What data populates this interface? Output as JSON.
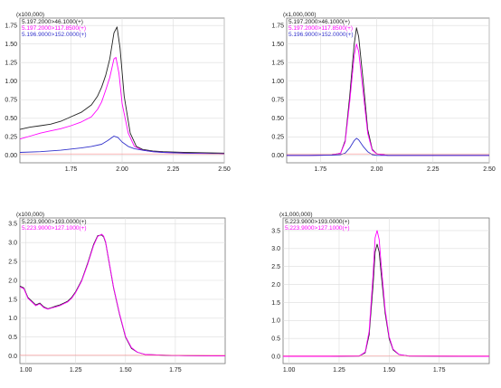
{
  "chart_data": [
    {
      "type": "line",
      "scale_label": "(x100,000)",
      "legend": [
        "5.197.2000>46.1000(+)",
        "5.197.2000>117.8500(+)",
        "5.196.9000>152.0000(+)"
      ],
      "xlim": [
        1.5,
        2.5
      ],
      "ylim": [
        -0.1,
        1.85
      ],
      "xticks": [
        "1.75",
        "2.00",
        "2.25",
        "2.50"
      ],
      "yticks": [
        "0.00",
        "0.25",
        "0.50",
        "0.75",
        "1.00",
        "1.25",
        "1.50",
        "1.75"
      ],
      "series": [
        {
          "name": "5.197.2000>46.1000(+)",
          "color": "#222222",
          "x": [
            1.5,
            1.55,
            1.6,
            1.65,
            1.7,
            1.75,
            1.8,
            1.85,
            1.88,
            1.9,
            1.92,
            1.94,
            1.96,
            1.975,
            1.99,
            2.01,
            2.04,
            2.07,
            2.1,
            2.15,
            2.2,
            2.3,
            2.5
          ],
          "y": [
            0.35,
            0.38,
            0.4,
            0.42,
            0.46,
            0.52,
            0.58,
            0.68,
            0.8,
            0.92,
            1.08,
            1.3,
            1.65,
            1.73,
            1.45,
            0.8,
            0.3,
            0.12,
            0.08,
            0.06,
            0.05,
            0.04,
            0.03
          ]
        },
        {
          "name": "5.197.2000>117.8500(+)",
          "color": "#ff00ff",
          "x": [
            1.5,
            1.55,
            1.6,
            1.65,
            1.7,
            1.75,
            1.8,
            1.85,
            1.88,
            1.9,
            1.92,
            1.94,
            1.96,
            1.97,
            1.985,
            2.0,
            2.03,
            2.06,
            2.1,
            2.15,
            2.2,
            2.3,
            2.5
          ],
          "y": [
            0.22,
            0.26,
            0.3,
            0.33,
            0.36,
            0.4,
            0.45,
            0.52,
            0.62,
            0.72,
            0.88,
            1.05,
            1.3,
            1.32,
            1.1,
            0.7,
            0.3,
            0.12,
            0.07,
            0.05,
            0.04,
            0.03,
            0.02
          ]
        },
        {
          "name": "5.196.9000>152.0000(+)",
          "color": "#3333cc",
          "x": [
            1.5,
            1.6,
            1.7,
            1.8,
            1.85,
            1.9,
            1.93,
            1.96,
            1.98,
            2.0,
            2.03,
            2.06,
            2.1,
            2.15,
            2.2,
            2.3,
            2.5
          ],
          "y": [
            0.04,
            0.05,
            0.07,
            0.1,
            0.12,
            0.15,
            0.2,
            0.26,
            0.24,
            0.18,
            0.12,
            0.09,
            0.07,
            0.05,
            0.04,
            0.03,
            0.02
          ]
        }
      ]
    },
    {
      "type": "line",
      "scale_label": "(x1,000,000)",
      "legend": [
        "5.197.2000>46.1000(+)",
        "5.197.2000>117.8500(+)",
        "5.196.9000>152.0000(+)"
      ],
      "xlim": [
        1.6,
        2.5
      ],
      "ylim": [
        -0.1,
        1.85
      ],
      "xticks": [
        "1.75",
        "2.00",
        "2.25",
        "2.50"
      ],
      "yticks": [
        "0.00",
        "0.25",
        "0.50",
        "0.75",
        "1.00",
        "1.25",
        "1.50",
        "1.75"
      ],
      "series": [
        {
          "name": "5.197.2000>46.1000(+)",
          "color": "#222222",
          "x": [
            1.6,
            1.7,
            1.8,
            1.84,
            1.86,
            1.88,
            1.9,
            1.91,
            1.92,
            1.94,
            1.96,
            1.98,
            2.0,
            2.05,
            2.5
          ],
          "y": [
            0.0,
            0.0,
            0.005,
            0.03,
            0.2,
            0.8,
            1.5,
            1.72,
            1.6,
            1.0,
            0.35,
            0.08,
            0.02,
            0.0,
            0.0
          ]
        },
        {
          "name": "5.197.2000>117.8500(+)",
          "color": "#ff00ff",
          "x": [
            1.6,
            1.7,
            1.8,
            1.84,
            1.86,
            1.88,
            1.9,
            1.91,
            1.92,
            1.94,
            1.96,
            1.98,
            2.0,
            2.05,
            2.5
          ],
          "y": [
            0.0,
            0.0,
            0.005,
            0.03,
            0.18,
            0.72,
            1.35,
            1.5,
            1.4,
            0.85,
            0.3,
            0.07,
            0.02,
            0.0,
            0.0
          ]
        },
        {
          "name": "5.196.9000>152.0000(+)",
          "color": "#3333cc",
          "x": [
            1.6,
            1.7,
            1.8,
            1.84,
            1.86,
            1.88,
            1.9,
            1.91,
            1.92,
            1.94,
            1.96,
            1.98,
            2.0,
            2.05,
            2.5
          ],
          "y": [
            0.0,
            0.0,
            0.003,
            0.01,
            0.03,
            0.1,
            0.2,
            0.23,
            0.21,
            0.12,
            0.05,
            0.01,
            0.0,
            0.0,
            0.0
          ]
        }
      ]
    },
    {
      "type": "line",
      "scale_label": "(x100,000)",
      "legend": [
        "5.223.9000>193.0000(+)",
        "5.223.9000>127.1000(+)"
      ],
      "xlim": [
        0.97,
        2.0
      ],
      "ylim": [
        -0.2,
        3.65
      ],
      "xticks": [
        "1.00",
        "1.25",
        "1.50",
        "1.75"
      ],
      "yticks": [
        "0.0",
        "0.5",
        "1.0",
        "1.5",
        "2.0",
        "2.5",
        "3.0",
        "3.5"
      ],
      "series": [
        {
          "name": "5.223.9000>193.0000(+)",
          "color": "#222222",
          "x": [
            0.97,
            0.99,
            1.01,
            1.03,
            1.05,
            1.07,
            1.09,
            1.11,
            1.13,
            1.15,
            1.17,
            1.19,
            1.21,
            1.23,
            1.25,
            1.28,
            1.31,
            1.34,
            1.36,
            1.38,
            1.39,
            1.4,
            1.42,
            1.44,
            1.47,
            1.5,
            1.53,
            1.56,
            1.6,
            1.7,
            1.8,
            2.0
          ],
          "y": [
            1.85,
            1.8,
            1.55,
            1.45,
            1.35,
            1.4,
            1.3,
            1.25,
            1.28,
            1.32,
            1.35,
            1.4,
            1.45,
            1.55,
            1.7,
            2.0,
            2.45,
            2.95,
            3.18,
            3.2,
            3.15,
            3.0,
            2.4,
            1.8,
            1.1,
            0.5,
            0.2,
            0.1,
            0.04,
            0.02,
            0.01,
            0.0
          ]
        },
        {
          "name": "5.223.9000>127.1000(+)",
          "color": "#ff00ff",
          "x": [
            0.97,
            0.99,
            1.01,
            1.03,
            1.05,
            1.07,
            1.09,
            1.11,
            1.13,
            1.15,
            1.17,
            1.19,
            1.21,
            1.23,
            1.25,
            1.28,
            1.31,
            1.34,
            1.36,
            1.38,
            1.39,
            1.4,
            1.42,
            1.44,
            1.47,
            1.5,
            1.53,
            1.56,
            1.6,
            1.7,
            1.8,
            2.0
          ],
          "y": [
            1.83,
            1.78,
            1.53,
            1.43,
            1.33,
            1.38,
            1.28,
            1.24,
            1.27,
            1.3,
            1.33,
            1.38,
            1.43,
            1.53,
            1.68,
            1.98,
            2.42,
            2.92,
            3.16,
            3.22,
            3.17,
            3.02,
            2.42,
            1.82,
            1.12,
            0.52,
            0.22,
            0.1,
            0.04,
            0.02,
            0.01,
            0.0
          ]
        }
      ]
    },
    {
      "type": "line",
      "scale_label": "(x1,000,000)",
      "legend": [
        "5.223.9000>193.0000(+)",
        "5.223.9000>127.1000(+)"
      ],
      "xlim": [
        0.97,
        2.0
      ],
      "ylim": [
        -0.2,
        3.85
      ],
      "xticks": [
        "1.00",
        "1.25",
        "1.50",
        "1.75"
      ],
      "yticks": [
        "0.0",
        "0.5",
        "1.0",
        "1.5",
        "2.0",
        "2.5",
        "3.0",
        "3.5"
      ],
      "series": [
        {
          "name": "5.223.9000>193.0000(+)",
          "color": "#222222",
          "x": [
            0.97,
            1.2,
            1.35,
            1.38,
            1.4,
            1.42,
            1.43,
            1.44,
            1.45,
            1.46,
            1.48,
            1.5,
            1.52,
            1.55,
            1.6,
            2.0
          ],
          "y": [
            0.0,
            0.0,
            0.01,
            0.1,
            0.6,
            2.0,
            2.9,
            3.12,
            2.9,
            2.3,
            1.2,
            0.5,
            0.18,
            0.05,
            0.01,
            0.0
          ]
        },
        {
          "name": "5.223.9000>127.1000(+)",
          "color": "#ff00ff",
          "x": [
            0.97,
            1.2,
            1.35,
            1.38,
            1.4,
            1.42,
            1.43,
            1.44,
            1.45,
            1.46,
            1.48,
            1.5,
            1.52,
            1.55,
            1.6,
            2.0
          ],
          "y": [
            0.0,
            0.0,
            0.01,
            0.12,
            0.7,
            2.3,
            3.3,
            3.5,
            3.25,
            2.55,
            1.3,
            0.55,
            0.2,
            0.05,
            0.01,
            0.0
          ]
        }
      ]
    }
  ]
}
